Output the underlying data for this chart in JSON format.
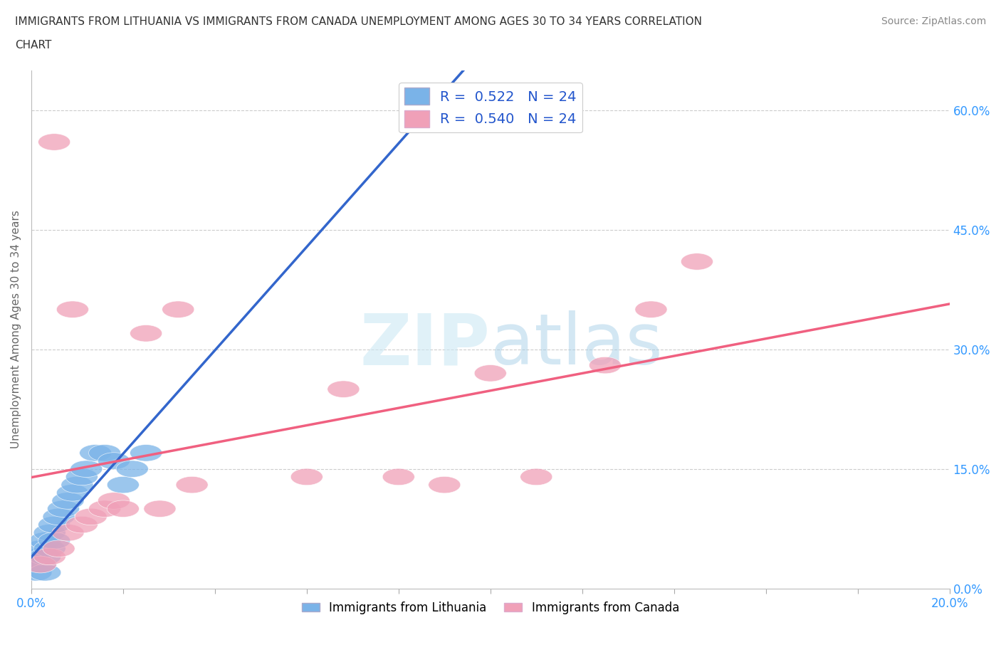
{
  "title_line1": "IMMIGRANTS FROM LITHUANIA VS IMMIGRANTS FROM CANADA UNEMPLOYMENT AMONG AGES 30 TO 34 YEARS CORRELATION",
  "title_line2": "CHART",
  "source_text": "Source: ZipAtlas.com",
  "ylabel": "Unemployment Among Ages 30 to 34 years",
  "y_tick_labels_right": [
    "60.0%",
    "45.0%",
    "30.0%",
    "15.0%",
    "0.0%"
  ],
  "y_tick_positions": [
    0.6,
    0.45,
    0.3,
    0.15,
    0.0
  ],
  "watermark_text": "ZIPatlas",
  "color_lithuania": "#7ab3e8",
  "color_canada": "#f0a0b8",
  "color_line_lithuania_solid": "#3366cc",
  "color_line_lithuania_dashed": "#88ccee",
  "color_line_canada": "#f06080",
  "background_color": "#ffffff",
  "grid_color": "#cccccc",
  "xlim": [
    0.0,
    0.2
  ],
  "ylim": [
    0.0,
    0.65
  ],
  "lithuania_x": [
    0.001,
    0.002,
    0.002,
    0.003,
    0.003,
    0.004,
    0.004,
    0.005,
    0.005,
    0.006,
    0.006,
    0.007,
    0.008,
    0.009,
    0.01,
    0.011,
    0.012,
    0.013,
    0.015,
    0.016,
    0.018,
    0.022,
    0.025,
    0.027
  ],
  "lithuania_y": [
    0.01,
    0.02,
    0.03,
    0.02,
    0.04,
    0.03,
    0.05,
    0.04,
    0.06,
    0.05,
    0.07,
    0.08,
    0.09,
    0.1,
    0.11,
    0.13,
    0.14,
    0.15,
    0.16,
    0.17,
    0.19,
    0.16,
    0.15,
    0.18
  ],
  "canada_x": [
    0.003,
    0.004,
    0.005,
    0.006,
    0.007,
    0.008,
    0.01,
    0.012,
    0.014,
    0.016,
    0.02,
    0.025,
    0.03,
    0.035,
    0.04,
    0.06,
    0.065,
    0.08,
    0.09,
    0.1,
    0.11,
    0.12,
    0.13,
    0.14
  ],
  "canada_y": [
    0.02,
    0.03,
    0.55,
    0.04,
    0.05,
    0.35,
    0.07,
    0.09,
    0.1,
    0.11,
    0.1,
    0.32,
    0.11,
    0.35,
    0.12,
    0.14,
    0.25,
    0.14,
    0.13,
    0.28,
    0.14,
    0.29,
    0.35,
    0.4
  ]
}
